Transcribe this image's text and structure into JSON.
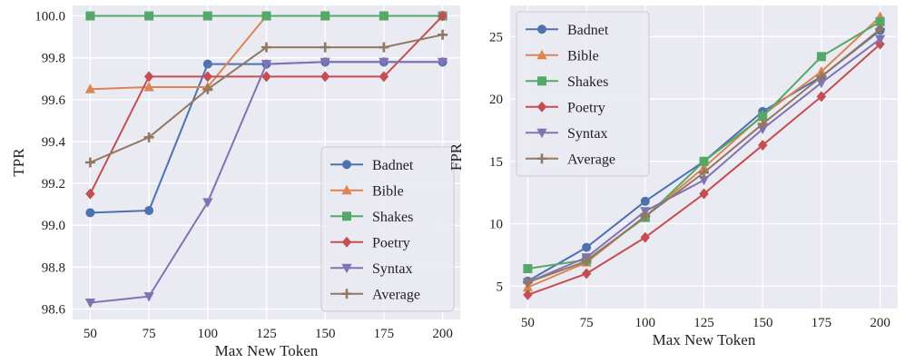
{
  "chart_data": [
    {
      "type": "line",
      "title": "",
      "xlabel": "Max New Token",
      "ylabel": "TPR",
      "x": [
        50,
        75,
        100,
        125,
        150,
        175,
        200
      ],
      "xticks": [
        "50",
        "75",
        "100",
        "125",
        "150",
        "175",
        "200"
      ],
      "ylim": [
        98.55,
        100.05
      ],
      "yticks": [
        "98.6",
        "98.8",
        "99.0",
        "99.2",
        "99.4",
        "99.6",
        "99.8",
        "100.0"
      ],
      "ytick_values": [
        98.6,
        98.8,
        99.0,
        99.2,
        99.4,
        99.6,
        99.8,
        100.0
      ],
      "legend_position": "lower-right",
      "series": [
        {
          "name": "Badnet",
          "color": "#4c72b0",
          "marker": "circle",
          "values": [
            99.06,
            99.07,
            99.77,
            99.77,
            99.78,
            99.78,
            99.78
          ]
        },
        {
          "name": "Bible",
          "color": "#dd8452",
          "marker": "triangle-up",
          "values": [
            99.65,
            99.66,
            99.66,
            100.0,
            100.0,
            100.0,
            100.0
          ]
        },
        {
          "name": "Shakes",
          "color": "#55a868",
          "marker": "square",
          "values": [
            100.0,
            100.0,
            100.0,
            100.0,
            100.0,
            100.0,
            100.0
          ]
        },
        {
          "name": "Poetry",
          "color": "#c44e52",
          "marker": "diamond",
          "values": [
            99.15,
            99.71,
            99.71,
            99.71,
            99.71,
            99.71,
            100.0
          ]
        },
        {
          "name": "Syntax",
          "color": "#8172b3",
          "marker": "triangle-down",
          "values": [
            98.63,
            98.66,
            99.11,
            99.77,
            99.78,
            99.78,
            99.78
          ]
        },
        {
          "name": "Average",
          "color": "#937860",
          "marker": "plus",
          "values": [
            99.3,
            99.42,
            99.65,
            99.85,
            99.85,
            99.85,
            99.91
          ]
        }
      ]
    },
    {
      "type": "line",
      "title": "",
      "xlabel": "Max New Token",
      "ylabel": "FPR",
      "x": [
        50,
        75,
        100,
        125,
        150,
        175,
        200
      ],
      "xticks": [
        "50",
        "75",
        "100",
        "125",
        "150",
        "175",
        "200"
      ],
      "ylim": [
        3.2,
        27.5
      ],
      "yticks": [
        "5",
        "10",
        "15",
        "20",
        "25"
      ],
      "ytick_values": [
        5,
        10,
        15,
        20,
        25
      ],
      "legend_position": "upper-left",
      "series": [
        {
          "name": "Badnet",
          "color": "#4c72b0",
          "marker": "circle",
          "values": [
            5.4,
            8.1,
            11.8,
            15.0,
            19.0,
            21.8,
            25.5
          ]
        },
        {
          "name": "Bible",
          "color": "#dd8452",
          "marker": "triangle-up",
          "values": [
            4.9,
            6.9,
            10.6,
            14.5,
            18.7,
            22.2,
            26.6
          ]
        },
        {
          "name": "Shakes",
          "color": "#55a868",
          "marker": "square",
          "values": [
            6.4,
            7.1,
            10.5,
            15.0,
            18.6,
            23.4,
            26.2
          ]
        },
        {
          "name": "Poetry",
          "color": "#c44e52",
          "marker": "diamond",
          "values": [
            4.3,
            6.0,
            8.9,
            12.4,
            16.3,
            20.2,
            24.4
          ]
        },
        {
          "name": "Syntax",
          "color": "#8172b3",
          "marker": "triangle-down",
          "values": [
            5.3,
            7.3,
            11.0,
            13.5,
            17.6,
            21.3,
            24.8
          ]
        },
        {
          "name": "Average",
          "color": "#937860",
          "marker": "plus",
          "values": [
            5.3,
            7.0,
            10.6,
            14.1,
            18.0,
            21.8,
            25.6
          ]
        }
      ]
    }
  ]
}
